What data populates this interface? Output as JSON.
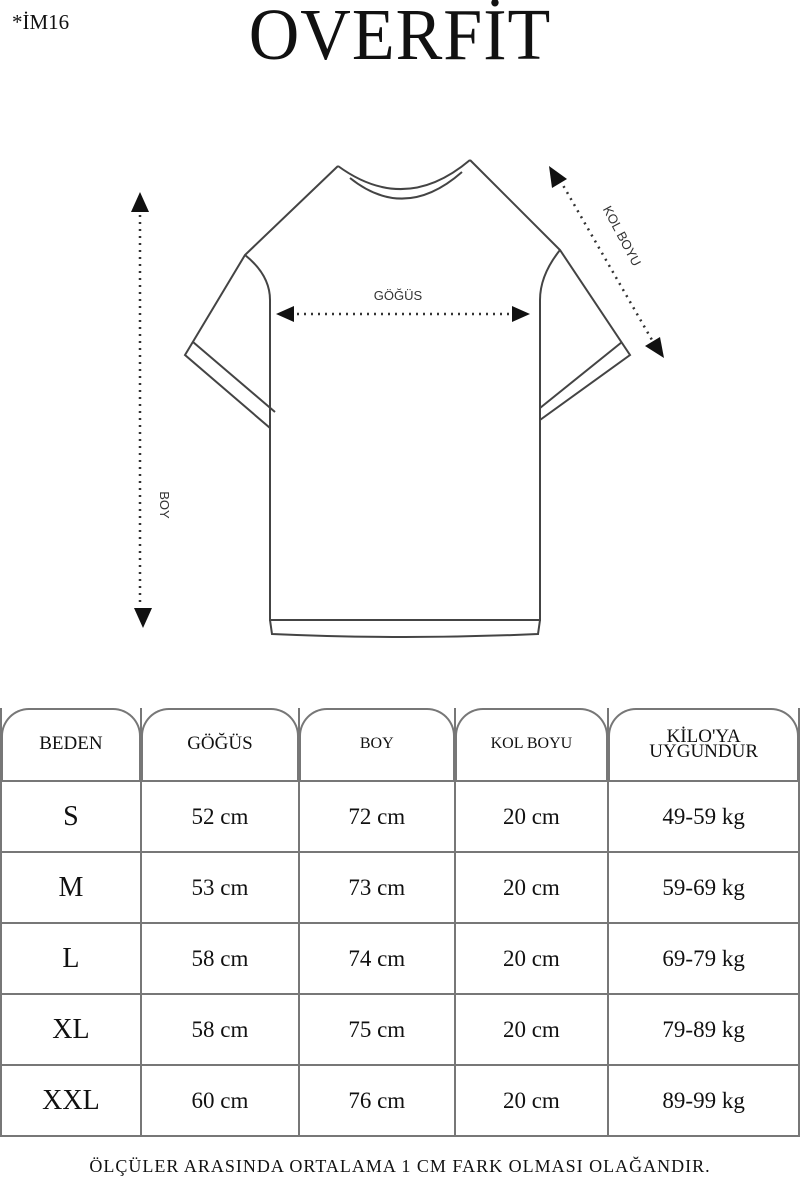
{
  "header": {
    "code": "*İM16",
    "title": "OVERFİT"
  },
  "diagram": {
    "chest_label": "GÖĞÜS",
    "sleeve_label": "KOL BOYU",
    "length_label": "BOY"
  },
  "table": {
    "headers": [
      "BEDEN",
      "GÖĞÜS",
      "BOY",
      "KOL BOYU",
      "KİLO'YA UYGUNDUR"
    ],
    "rows": [
      [
        "S",
        "52 cm",
        "72 cm",
        "20  cm",
        "49-59 kg"
      ],
      [
        "M",
        "53 cm",
        "73 cm",
        "20 cm",
        "59-69 kg"
      ],
      [
        "L",
        "58 cm",
        "74 cm",
        "20 cm",
        "69-79 kg"
      ],
      [
        "XL",
        "58 cm",
        "75 cm",
        "20 cm",
        "79-89 kg"
      ],
      [
        "XXL",
        "60 cm",
        "76 cm",
        "20 cm",
        "89-99 kg"
      ]
    ]
  },
  "footer": {
    "note": "ÖLÇÜLER ARASINDA ORTALAMA 1 CM FARK OLMASI OLAĞANDIR."
  }
}
